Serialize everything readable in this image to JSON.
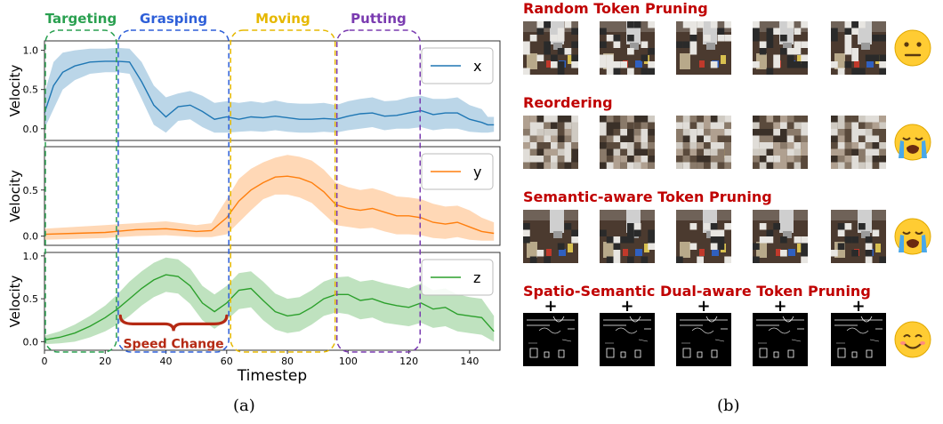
{
  "left_panel": {
    "caption": "(a)",
    "phases": [
      {
        "label": "Targeting",
        "color": "#2aa050",
        "start": 0,
        "end": 24
      },
      {
        "label": "Grasping",
        "color": "#2e5fd8",
        "start": 24,
        "end": 61
      },
      {
        "label": "Moving",
        "color": "#e6b800",
        "start": 61,
        "end": 96
      },
      {
        "label": "Putting",
        "color": "#7a3bb0",
        "start": 96,
        "end": 124
      }
    ],
    "annotation": {
      "label": "Speed Change",
      "color": "#b52a14",
      "start": 25,
      "end": 60,
      "y": 0.3
    }
  },
  "chart_data": [
    {
      "type": "area",
      "xlabel": "",
      "ylabel": "Velocity",
      "xlim": [
        0,
        150
      ],
      "ylim": [
        -0.15,
        1.12
      ],
      "yticks": [
        "0.0",
        "0.5",
        "1.0"
      ],
      "legend": "top-right",
      "series": [
        {
          "name": "x",
          "color": "#1f77b4",
          "x": [
            0,
            3,
            6,
            10,
            15,
            20,
            24,
            28,
            32,
            36,
            40,
            44,
            48,
            52,
            56,
            60,
            64,
            68,
            72,
            76,
            80,
            84,
            88,
            92,
            96,
            100,
            104,
            108,
            112,
            116,
            120,
            124,
            128,
            132,
            136,
            140,
            144,
            146,
            148
          ],
          "mean": [
            0.2,
            0.55,
            0.72,
            0.8,
            0.85,
            0.86,
            0.86,
            0.85,
            0.6,
            0.3,
            0.15,
            0.28,
            0.3,
            0.22,
            0.12,
            0.15,
            0.12,
            0.15,
            0.14,
            0.16,
            0.14,
            0.12,
            0.12,
            0.13,
            0.12,
            0.16,
            0.19,
            0.2,
            0.16,
            0.17,
            0.2,
            0.23,
            0.18,
            0.2,
            0.2,
            0.12,
            0.08,
            0.05,
            0.05
          ],
          "lower": [
            0.0,
            0.25,
            0.5,
            0.62,
            0.7,
            0.72,
            0.72,
            0.7,
            0.38,
            0.05,
            -0.05,
            0.1,
            0.12,
            0.02,
            -0.05,
            -0.05,
            -0.04,
            -0.03,
            -0.04,
            -0.02,
            -0.04,
            -0.05,
            -0.05,
            -0.04,
            -0.05,
            -0.02,
            0.0,
            0.02,
            -0.02,
            0.0,
            0.0,
            0.02,
            -0.02,
            0.0,
            0.0,
            -0.04,
            -0.05,
            -0.05,
            -0.04
          ],
          "upper": [
            0.45,
            0.85,
            0.97,
            1.0,
            1.02,
            1.02,
            1.03,
            1.02,
            0.85,
            0.55,
            0.4,
            0.45,
            0.48,
            0.42,
            0.33,
            0.35,
            0.33,
            0.35,
            0.33,
            0.36,
            0.33,
            0.32,
            0.32,
            0.33,
            0.3,
            0.35,
            0.38,
            0.4,
            0.35,
            0.36,
            0.4,
            0.42,
            0.38,
            0.38,
            0.4,
            0.3,
            0.25,
            0.15,
            0.15
          ]
        }
      ]
    },
    {
      "type": "area",
      "xlabel": "",
      "ylabel": "Velocity",
      "xlim": [
        0,
        150
      ],
      "ylim": [
        -0.1,
        0.97
      ],
      "yticks": [
        "0.0",
        "0.5"
      ],
      "legend": "top-right",
      "series": [
        {
          "name": "y",
          "color": "#ff7f0e",
          "x": [
            0,
            10,
            20,
            30,
            40,
            50,
            55,
            60,
            64,
            68,
            72,
            76,
            80,
            84,
            88,
            92,
            96,
            100,
            104,
            108,
            112,
            116,
            120,
            124,
            128,
            132,
            136,
            140,
            144,
            148
          ],
          "mean": [
            0.02,
            0.03,
            0.04,
            0.07,
            0.08,
            0.05,
            0.06,
            0.2,
            0.38,
            0.5,
            0.58,
            0.64,
            0.65,
            0.63,
            0.58,
            0.48,
            0.34,
            0.3,
            0.28,
            0.3,
            0.26,
            0.22,
            0.22,
            0.2,
            0.15,
            0.13,
            0.15,
            0.1,
            0.05,
            0.03
          ],
          "lower": [
            -0.04,
            -0.03,
            -0.02,
            0.0,
            0.01,
            -0.01,
            -0.01,
            0.02,
            0.15,
            0.28,
            0.4,
            0.45,
            0.45,
            0.42,
            0.36,
            0.24,
            0.12,
            0.1,
            0.08,
            0.09,
            0.05,
            0.02,
            0.02,
            0.01,
            -0.02,
            -0.03,
            -0.01,
            -0.04,
            -0.05,
            -0.05
          ],
          "upper": [
            0.08,
            0.1,
            0.12,
            0.14,
            0.16,
            0.12,
            0.14,
            0.4,
            0.62,
            0.73,
            0.8,
            0.85,
            0.88,
            0.86,
            0.82,
            0.72,
            0.58,
            0.53,
            0.5,
            0.52,
            0.48,
            0.43,
            0.42,
            0.4,
            0.35,
            0.32,
            0.33,
            0.28,
            0.2,
            0.15
          ]
        }
      ]
    },
    {
      "type": "area",
      "xlabel": "Timestep",
      "ylabel": "Velocity",
      "xlim": [
        0,
        150
      ],
      "ylim": [
        -0.1,
        1.04
      ],
      "yticks": [
        "0.0",
        "0.5",
        "1.0"
      ],
      "xticks": [
        0,
        20,
        40,
        60,
        80,
        100,
        120,
        140
      ],
      "legend": "top-right",
      "series": [
        {
          "name": "z",
          "color": "#2ca02c",
          "x": [
            0,
            5,
            10,
            15,
            20,
            24,
            28,
            32,
            36,
            40,
            44,
            48,
            52,
            56,
            60,
            64,
            68,
            72,
            76,
            80,
            84,
            88,
            92,
            96,
            100,
            104,
            108,
            112,
            116,
            120,
            124,
            128,
            132,
            136,
            140,
            144,
            148
          ],
          "mean": [
            0.02,
            0.05,
            0.1,
            0.18,
            0.28,
            0.38,
            0.5,
            0.62,
            0.72,
            0.78,
            0.76,
            0.65,
            0.45,
            0.35,
            0.45,
            0.6,
            0.62,
            0.48,
            0.35,
            0.3,
            0.32,
            0.4,
            0.5,
            0.55,
            0.55,
            0.48,
            0.5,
            0.45,
            0.42,
            0.4,
            0.45,
            0.38,
            0.4,
            0.32,
            0.3,
            0.28,
            0.12
          ],
          "lower": [
            -0.03,
            -0.02,
            0.0,
            0.05,
            0.12,
            0.2,
            0.3,
            0.42,
            0.52,
            0.58,
            0.56,
            0.44,
            0.25,
            0.15,
            0.25,
            0.38,
            0.4,
            0.25,
            0.14,
            0.1,
            0.12,
            0.2,
            0.3,
            0.34,
            0.32,
            0.26,
            0.28,
            0.22,
            0.2,
            0.18,
            0.22,
            0.16,
            0.18,
            0.12,
            0.1,
            0.08,
            0.0
          ],
          "upper": [
            0.07,
            0.12,
            0.2,
            0.3,
            0.42,
            0.55,
            0.7,
            0.82,
            0.92,
            0.98,
            0.96,
            0.85,
            0.65,
            0.55,
            0.65,
            0.8,
            0.82,
            0.7,
            0.56,
            0.5,
            0.52,
            0.6,
            0.7,
            0.75,
            0.76,
            0.7,
            0.72,
            0.68,
            0.65,
            0.62,
            0.68,
            0.6,
            0.62,
            0.55,
            0.52,
            0.5,
            0.3
          ]
        }
      ]
    }
  ],
  "right_panel": {
    "caption": "(b)",
    "sections": [
      {
        "title": "Random Token Pruning",
        "image_style": "random-pruned",
        "plus_marks": [],
        "mood": "neutral-face-icon"
      },
      {
        "title": "Reordering",
        "image_style": "shuffled",
        "plus_marks": [],
        "mood": "crying-face-icon"
      },
      {
        "title": "Semantic-aware Token Pruning",
        "image_style": "semantic-pruned",
        "plus_marks": [],
        "mood": "crying-face-icon"
      },
      {
        "title": "Spatio-Semantic  Dual-aware Token Pruning",
        "image_style": "edge-map",
        "plus_marks": [
          "+",
          "+",
          "+",
          "+",
          "+"
        ],
        "mood": "smiling-face-icon"
      }
    ]
  }
}
